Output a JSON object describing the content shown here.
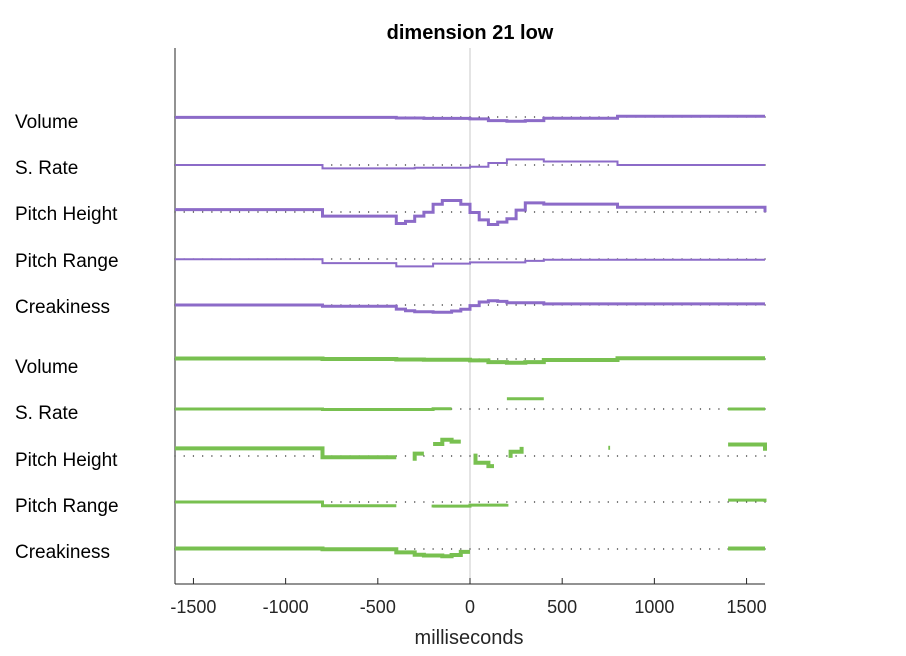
{
  "chart_data": {
    "type": "line",
    "title": "dimension 21 low",
    "xlabel": "milliseconds",
    "xlim": [
      -1600,
      1600
    ],
    "xticks": [
      -1500,
      -1000,
      -500,
      0,
      500,
      1000,
      1500
    ],
    "xtick_labels": [
      "-1500",
      "-1000",
      "-500",
      "0",
      "500",
      "1000",
      "1500"
    ],
    "baseline_dot_spacing_ms": 50,
    "groups": [
      {
        "color": "#8c6bc8",
        "rows": [
          {
            "label": "Volume",
            "width": 3,
            "points": [
              [
                -1600,
                -0.3
              ],
              [
                -400,
                -0.3
              ],
              [
                -400,
                -0.8
              ],
              [
                -250,
                -0.8
              ],
              [
                -250,
                -1.2
              ],
              [
                0,
                -1.2
              ],
              [
                0,
                -1.6
              ],
              [
                100,
                -1.6
              ],
              [
                100,
                -3.0
              ],
              [
                200,
                -3.0
              ],
              [
                200,
                -3.6
              ],
              [
                300,
                -3.6
              ],
              [
                300,
                -3.0
              ],
              [
                400,
                -3.0
              ],
              [
                400,
                -1.0
              ],
              [
                800,
                -1.0
              ],
              [
                800,
                0.6
              ],
              [
                1600,
                0.6
              ]
            ],
            "segments": []
          },
          {
            "label": "S. Rate",
            "width": 2,
            "points": [
              [
                -1600,
                0
              ],
              [
                -800,
                0
              ],
              [
                -800,
                -2.8
              ],
              [
                -300,
                -2.8
              ],
              [
                -300,
                -2.3
              ],
              [
                0,
                -2.3
              ],
              [
                0,
                -1.5
              ],
              [
                100,
                -1.5
              ],
              [
                100,
                1.7
              ],
              [
                200,
                1.7
              ],
              [
                200,
                4.7
              ],
              [
                400,
                4.7
              ],
              [
                400,
                2.9
              ],
              [
                800,
                2.9
              ],
              [
                800,
                0
              ],
              [
                1600,
                0
              ]
            ],
            "segments": []
          },
          {
            "label": "Pitch Height",
            "width": 3,
            "points": [
              [
                -1600,
                2.0
              ],
              [
                -800,
                2.0
              ],
              [
                -800,
                -3.4
              ],
              [
                -400,
                -3.4
              ],
              [
                -400,
                -9.6
              ],
              [
                -350,
                -9.6
              ],
              [
                -350,
                -7.8
              ],
              [
                -300,
                -7.8
              ],
              [
                -300,
                -3.4
              ],
              [
                -250,
                -3.4
              ],
              [
                -250,
                -0.2
              ],
              [
                -200,
                -0.2
              ],
              [
                -200,
                6.5
              ],
              [
                -150,
                6.5
              ],
              [
                -150,
                9.6
              ],
              [
                -50,
                9.6
              ],
              [
                -50,
                6.5
              ],
              [
                0,
                6.5
              ],
              [
                0,
                -0.4
              ],
              [
                50,
                -0.4
              ],
              [
                50,
                -6.6
              ],
              [
                100,
                -6.6
              ],
              [
                100,
                -10.4
              ],
              [
                150,
                -10.4
              ],
              [
                150,
                -8.4
              ],
              [
                200,
                -8.4
              ],
              [
                200,
                -5.6
              ],
              [
                250,
                -5.6
              ],
              [
                250,
                1.6
              ],
              [
                300,
                1.6
              ],
              [
                300,
                7.6
              ],
              [
                400,
                7.6
              ],
              [
                400,
                6.6
              ],
              [
                800,
                6.6
              ],
              [
                800,
                3.9
              ],
              [
                1600,
                3.9
              ],
              [
                1600,
                -0.2
              ]
            ],
            "segments": []
          },
          {
            "label": "Pitch Range",
            "width": 2,
            "points": [
              [
                -1600,
                -0.2
              ],
              [
                -800,
                -0.2
              ],
              [
                -800,
                -3.4
              ],
              [
                -400,
                -3.4
              ],
              [
                -400,
                -6.2
              ],
              [
                -200,
                -6.2
              ],
              [
                -200,
                -3.8
              ],
              [
                0,
                -3.8
              ],
              [
                0,
                -2.8
              ],
              [
                300,
                -2.8
              ],
              [
                300,
                -1.6
              ],
              [
                400,
                -1.6
              ],
              [
                400,
                -0.6
              ],
              [
                1600,
                -0.6
              ]
            ],
            "segments": []
          },
          {
            "label": "Creakiness",
            "width": 3,
            "points": [
              [
                -1600,
                0
              ],
              [
                -800,
                0
              ],
              [
                -800,
                -1.0
              ],
              [
                -400,
                -1.0
              ],
              [
                -400,
                -3.4
              ],
              [
                -350,
                -3.4
              ],
              [
                -350,
                -4.8
              ],
              [
                -300,
                -4.8
              ],
              [
                -300,
                -5.6
              ],
              [
                -200,
                -5.6
              ],
              [
                -200,
                -6.0
              ],
              [
                -100,
                -6.0
              ],
              [
                -100,
                -5.0
              ],
              [
                -50,
                -5.0
              ],
              [
                -50,
                -3.5
              ],
              [
                0,
                -3.5
              ],
              [
                0,
                -0.5
              ],
              [
                50,
                -0.5
              ],
              [
                50,
                2.5
              ],
              [
                100,
                2.5
              ],
              [
                100,
                3.6
              ],
              [
                150,
                3.6
              ],
              [
                150,
                3.0
              ],
              [
                200,
                3.0
              ],
              [
                200,
                1.8
              ],
              [
                400,
                1.8
              ],
              [
                400,
                0.9
              ],
              [
                1600,
                0.9
              ]
            ],
            "segments": []
          }
        ]
      },
      {
        "color": "#78c050",
        "rows": [
          {
            "label": "Volume",
            "width": 4,
            "points": [],
            "segments": [
              [
                [
                  -1600,
                  0.4
                ],
                [
                  -800,
                  0.4
                ],
                [
                  -800,
                  0.0
                ],
                [
                  -400,
                  0.0
                ],
                [
                  -400,
                  -0.4
                ],
                [
                  -250,
                  -0.4
                ],
                [
                  -250,
                  -0.7
                ],
                [
                  0,
                  -0.7
                ],
                [
                  0,
                  -1.2
                ],
                [
                  100,
                  -1.2
                ],
                [
                  100,
                  -2.6
                ],
                [
                  200,
                  -2.6
                ],
                [
                  200,
                  -3.2
                ],
                [
                  300,
                  -3.2
                ],
                [
                  300,
                  -2.6
                ],
                [
                  400,
                  -2.6
                ],
                [
                  400,
                  -0.8
                ],
                [
                  800,
                  -0.8
                ],
                [
                  800,
                  0.6
                ],
                [
                  1600,
                  0.6
                ]
              ]
            ]
          },
          {
            "label": "S. Rate",
            "width": 3,
            "points": [],
            "segments": [
              [
                [
                  -1600,
                  0
                ],
                [
                  -800,
                  0
                ],
                [
                  -800,
                  -0.4
                ],
                [
                  -200,
                  -0.4
                ],
                [
                  -200,
                  0.2
                ],
                [
                  -100,
                  0.2
                ]
              ],
              [
                [
                  200,
                  8.6
                ],
                [
                  400,
                  8.6
                ]
              ],
              [
                [
                  1400,
                  0
                ],
                [
                  1600,
                  0
                ]
              ]
            ]
          },
          {
            "label": "Pitch Height",
            "width": 4,
            "points": [],
            "segments": [
              [
                [
                  -1600,
                  6.3
                ],
                [
                  -800,
                  6.3
                ],
                [
                  -800,
                  -1.0
                ],
                [
                  -400,
                  -1.0
                ]
              ],
              [
                [
                  -300,
                  -4.0
                ],
                [
                  -300,
                  2.0
                ],
                [
                  -250,
                  2.0
                ]
              ],
              [
                [
                  -200,
                  10.0
                ],
                [
                  -150,
                  10.0
                ],
                [
                  -150,
                  13.6
                ],
                [
                  -100,
                  13.6
                ],
                [
                  -100,
                  12.0
                ],
                [
                  -50,
                  12.0
                ]
              ],
              [
                [
                  30,
                  2.0
                ],
                [
                  30,
                  -5.6
                ],
                [
                  100,
                  -5.6
                ],
                [
                  100,
                  -8.4
                ],
                [
                  130,
                  -8.4
                ]
              ],
              [
                [
                  220,
                  -1.6
                ],
                [
                  220,
                  3.6
                ],
                [
                  280,
                  3.6
                ],
                [
                  280,
                  7.6
                ]
              ],
              [
                [
                  750,
                  6.8
                ],
                [
                  760,
                  6.8
                ]
              ],
              [
                [
                  1400,
                  9.6
                ],
                [
                  1600,
                  9.6
                ],
                [
                  1600,
                  4.4
                ]
              ]
            ]
          },
          {
            "label": "Pitch Range",
            "width": 3,
            "points": [],
            "segments": [
              [
                [
                  -1600,
                  0
                ],
                [
                  -800,
                  0
                ],
                [
                  -800,
                  -3.2
                ],
                [
                  -400,
                  -3.2
                ]
              ],
              [
                [
                  -200,
                  -4.6
                ],
                [
                  -200,
                  -3.4
                ],
                [
                  0,
                  -3.4
                ],
                [
                  0,
                  -2.6
                ],
                [
                  200,
                  -2.6
                ],
                [
                  200,
                  -1.6
                ]
              ],
              [
                [
                  1400,
                  1.6
                ],
                [
                  1600,
                  1.6
                ],
                [
                  1600,
                  0
                ]
              ]
            ]
          },
          {
            "label": "Creakiness",
            "width": 4,
            "points": [],
            "segments": [
              [
                [
                  -1600,
                  0.4
                ],
                [
                  -800,
                  0.4
                ],
                [
                  -800,
                  -0.2
                ],
                [
                  -400,
                  -0.2
                ],
                [
                  -400,
                  -2.8
                ],
                [
                  -300,
                  -2.8
                ],
                [
                  -300,
                  -4.8
                ],
                [
                  -250,
                  -4.8
                ],
                [
                  -250,
                  -5.4
                ],
                [
                  -150,
                  -5.4
                ],
                [
                  -150,
                  -6.0
                ],
                [
                  -100,
                  -6.0
                ],
                [
                  -100,
                  -5.0
                ],
                [
                  -50,
                  -5.0
                ],
                [
                  -50,
                  -2.4
                ],
                [
                  0,
                  -2.4
                ]
              ],
              [
                [
                  1400,
                  0.4
                ],
                [
                  1600,
                  0.4
                ]
              ]
            ]
          }
        ]
      }
    ]
  }
}
